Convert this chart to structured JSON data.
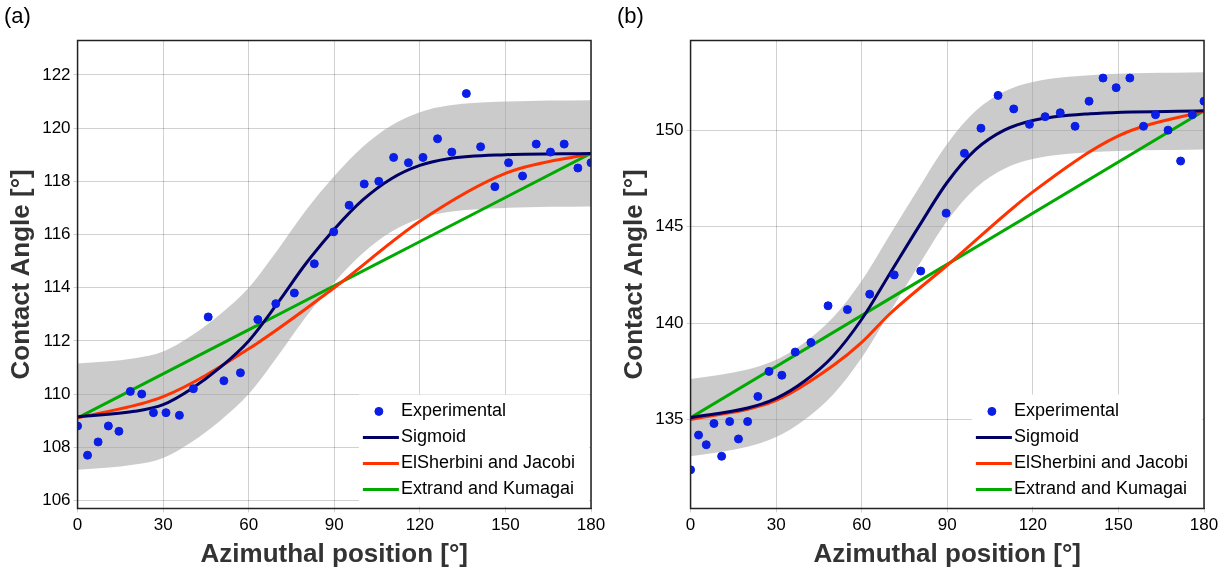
{
  "chart_data": [
    {
      "type": "line",
      "title": "(a)",
      "xlabel": "Azimuthal position [°]",
      "ylabel": "Contact Angle [°]",
      "xlim": [
        0,
        180
      ],
      "xticks": [
        0,
        30,
        60,
        90,
        120,
        150,
        180
      ],
      "ylim": [
        105.7,
        123.3
      ],
      "yticks": [
        106,
        108,
        110,
        112,
        114,
        116,
        118,
        120,
        122
      ],
      "grid": true,
      "legend": "bottom right",
      "series": [
        {
          "name": "Experimental",
          "type": "scatter",
          "marker": "circle",
          "color": "#0a1ee6",
          "x": [
            0,
            3.5,
            7.2,
            10.8,
            14.5,
            18.5,
            22.5,
            26.6,
            31,
            35.7,
            40.6,
            45.8,
            51.3,
            57.1,
            63.2,
            69.5,
            76,
            83,
            89.8,
            95.2,
            100.5,
            105.6,
            110.8,
            116,
            121.1,
            126.2,
            131.2,
            136.3,
            141.3,
            146.3,
            151.1,
            156,
            160.8,
            165.8,
            170.6,
            175.4,
            180
          ],
          "values": [
            108.8,
            107.7,
            108.2,
            108.8,
            108.6,
            110.1,
            110.0,
            109.3,
            109.3,
            109.2,
            110.2,
            112.9,
            110.5,
            110.8,
            112.8,
            113.4,
            113.8,
            114.9,
            116.1,
            117.1,
            117.9,
            118.0,
            118.9,
            118.7,
            118.9,
            119.6,
            119.1,
            121.3,
            119.3,
            117.8,
            118.7,
            118.2,
            119.4,
            119.1,
            119.4,
            118.5,
            118.7
          ]
        },
        {
          "name": "Sigmoid",
          "type": "line",
          "color": "#000066",
          "x": [
            0,
            20,
            30,
            40,
            50,
            60,
            70,
            80,
            90,
            100,
            110,
            120,
            130,
            150,
            180
          ],
          "values": [
            109.15,
            109.35,
            109.6,
            110.2,
            111.0,
            112.0,
            113.4,
            114.9,
            116.2,
            117.3,
            118.1,
            118.6,
            118.85,
            119.0,
            119.05
          ],
          "lower": [
            107.15,
            107.35,
            107.6,
            108.2,
            109.0,
            110.0,
            111.4,
            112.9,
            114.2,
            115.3,
            116.1,
            116.6,
            116.85,
            117.0,
            117.05
          ],
          "upper": [
            111.15,
            111.35,
            111.6,
            112.2,
            113.0,
            114.0,
            115.4,
            116.9,
            118.2,
            119.3,
            120.1,
            120.6,
            120.85,
            121.0,
            121.05
          ]
        },
        {
          "name": "ElSherbini and Jacobi",
          "type": "line",
          "color": "#ff3300",
          "x": [
            0,
            30,
            60,
            90,
            120,
            150,
            180
          ],
          "values": [
            109.1,
            109.9,
            111.7,
            114.0,
            116.5,
            118.3,
            119.05
          ]
        },
        {
          "name": "Extrand and Kumagai",
          "type": "line",
          "color": "#00aa00",
          "x": [
            0,
            180
          ],
          "values": [
            109.1,
            119.05
          ]
        }
      ]
    },
    {
      "type": "line",
      "title": "(b)",
      "xlabel": "Azimuthal position [°]",
      "ylabel": "Contact Angle [°]",
      "xlim": [
        0,
        180
      ],
      "xticks": [
        0,
        30,
        60,
        90,
        120,
        150,
        180
      ],
      "ylim": [
        130.4,
        154.65
      ],
      "yticks": [
        135,
        140,
        145,
        150
      ],
      "grid": true,
      "legend": "bottom right",
      "series": [
        {
          "name": "Experimental",
          "type": "scatter",
          "marker": "circle",
          "color": "#0a1ee6",
          "x": [
            0,
            2.8,
            5.5,
            8.2,
            10.9,
            13.7,
            16.8,
            20,
            23.6,
            27.5,
            32,
            36.7,
            42.2,
            48.2,
            55,
            62.8,
            71.4,
            80.7,
            89.6,
            96,
            101.8,
            107.8,
            113.3,
            118.8,
            124.3,
            129.6,
            134.8,
            139.7,
            144.6,
            149.2,
            154,
            158.8,
            163,
            167.4,
            171.8,
            175.9,
            180
          ],
          "values": [
            132.4,
            134.2,
            133.7,
            134.8,
            133.1,
            134.9,
            134.0,
            134.9,
            136.2,
            137.5,
            137.3,
            138.5,
            139.0,
            140.9,
            140.7,
            141.5,
            142.5,
            142.7,
            145.7,
            148.8,
            150.1,
            151.8,
            151.1,
            150.3,
            150.7,
            150.9,
            150.2,
            151.5,
            152.7,
            152.2,
            152.7,
            150.2,
            150.8,
            150.0,
            148.4,
            150.8,
            151.5
          ]
        },
        {
          "name": "Sigmoid",
          "type": "line",
          "color": "#000066",
          "x": [
            0,
            20,
            30,
            40,
            50,
            60,
            70,
            80,
            90,
            100,
            110,
            120,
            140,
            180
          ],
          "values": [
            135.1,
            135.6,
            136.1,
            137.0,
            138.3,
            140.2,
            142.6,
            145.0,
            147.3,
            149.0,
            150.0,
            150.5,
            150.85,
            151.0
          ],
          "lower": [
            133.1,
            133.6,
            134.1,
            135.0,
            136.3,
            138.2,
            140.6,
            143.0,
            145.3,
            147.0,
            148.0,
            148.5,
            148.85,
            149.0
          ],
          "upper": [
            137.1,
            137.6,
            138.1,
            139.0,
            140.3,
            142.2,
            144.6,
            147.0,
            149.3,
            151.0,
            152.0,
            152.5,
            152.85,
            153.0
          ]
        },
        {
          "name": "ElSherbini and Jacobi",
          "type": "line",
          "color": "#ff3300",
          "x": [
            0,
            30,
            50,
            60,
            70,
            90,
            120,
            150,
            180
          ],
          "values": [
            135.0,
            136.0,
            137.8,
            139.0,
            140.5,
            143.0,
            146.8,
            149.7,
            151.0
          ]
        },
        {
          "name": "Extrand and Kumagai",
          "type": "line",
          "color": "#00aa00",
          "x": [
            0,
            180
          ],
          "values": [
            135.1,
            151.0
          ]
        }
      ]
    }
  ]
}
